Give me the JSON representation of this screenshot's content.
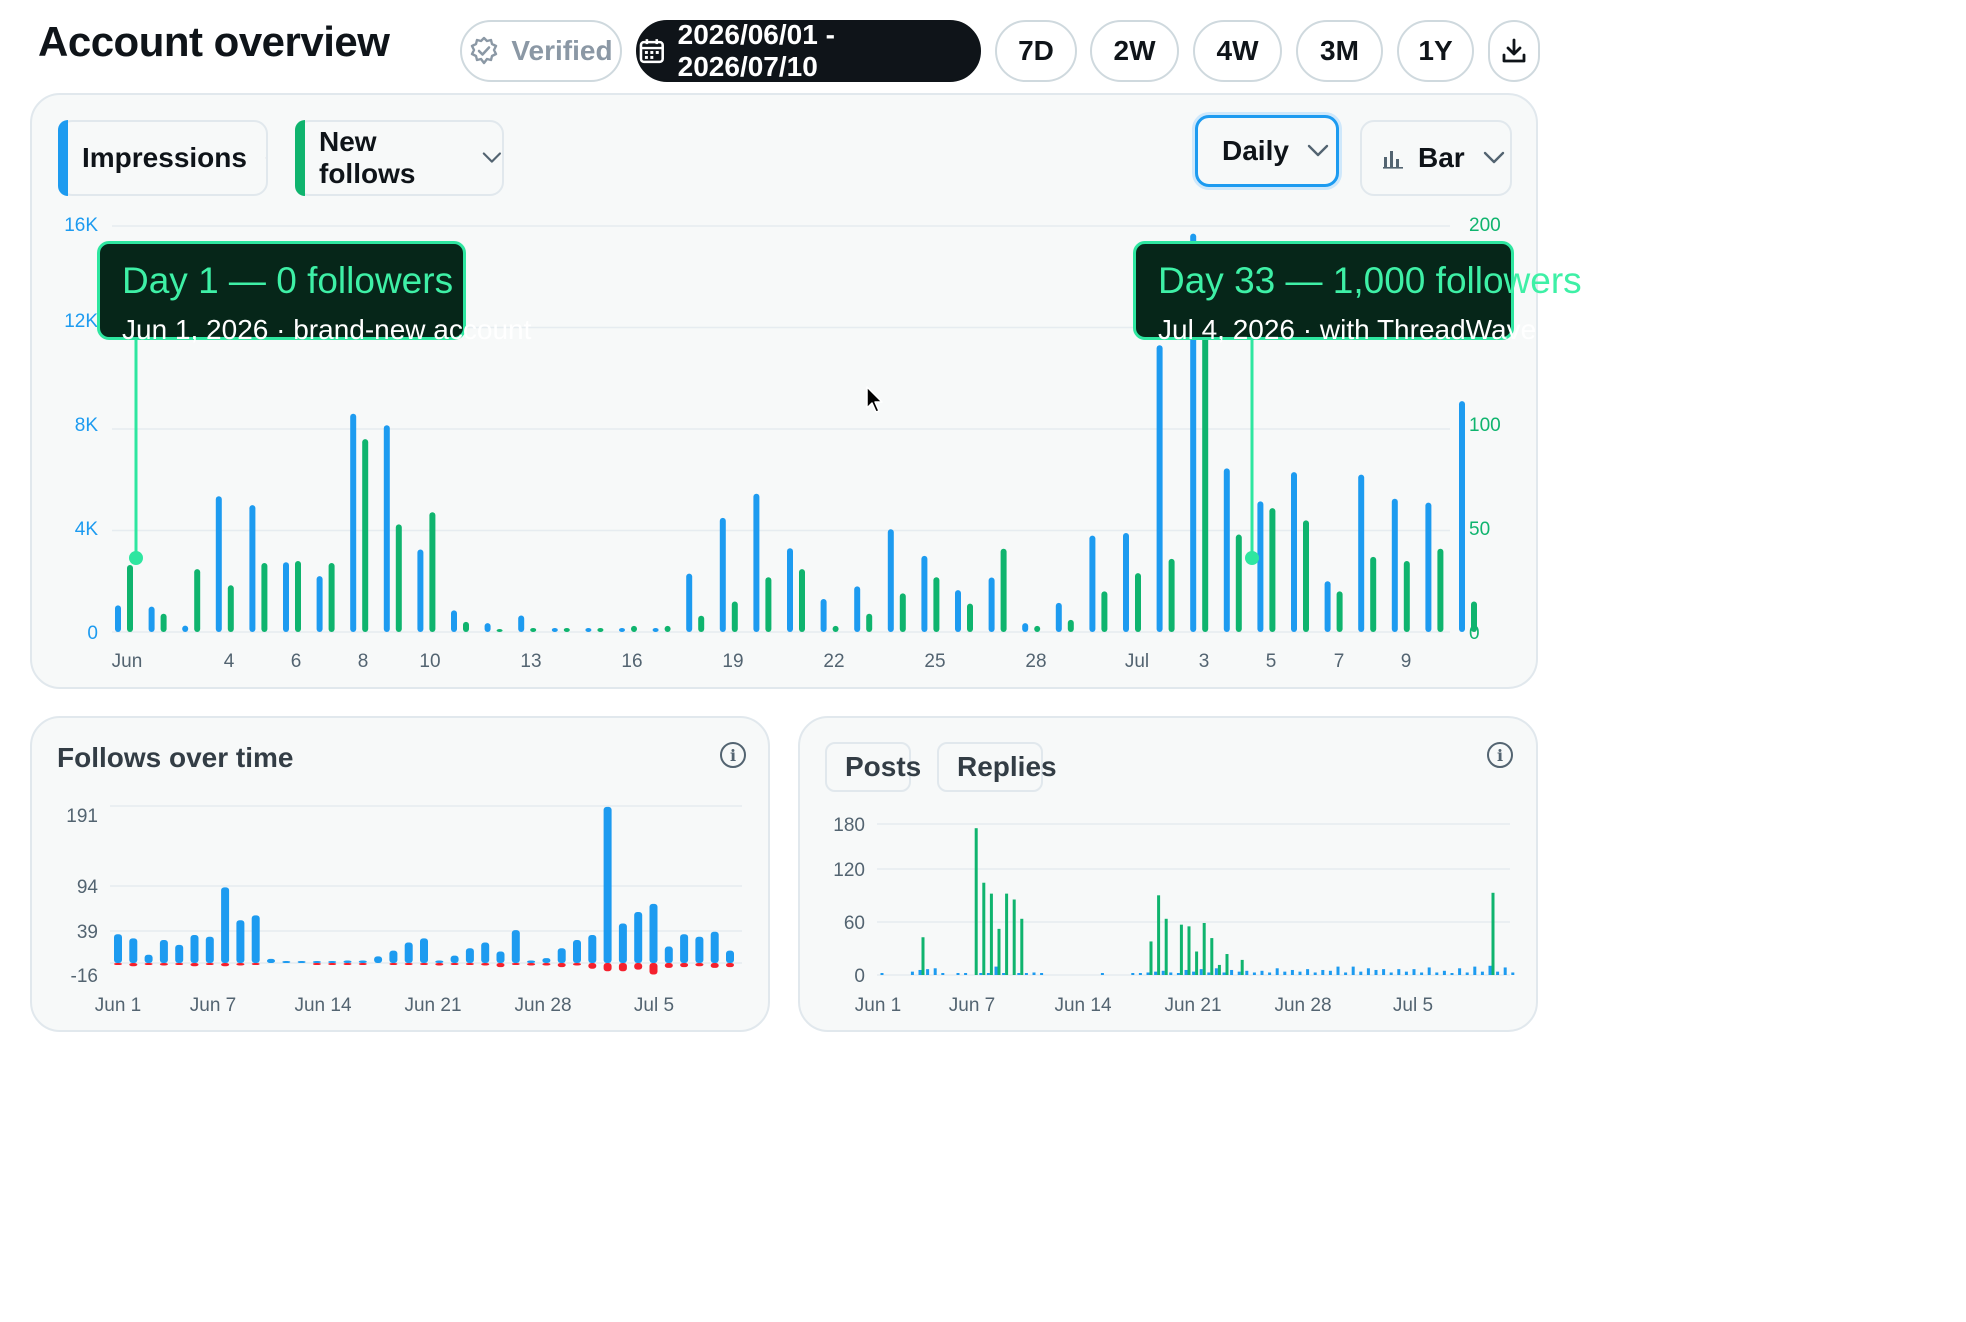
{
  "header": {
    "title": "Account overview",
    "verified_label": "Verified",
    "date_range": "2026/06/01 - 2026/07/10",
    "ranges": [
      "7D",
      "2W",
      "4W",
      "3M",
      "1Y"
    ],
    "download_icon": "download-icon"
  },
  "main_chart": {
    "metric1": "Impressions",
    "metric2": "New follows",
    "granularity": "Daily",
    "chart_type": "Bar",
    "colors": {
      "blue": "#1d9bf0",
      "green": "#0fb46e"
    },
    "tooltip1": {
      "title": "Day 1 — 0 followers",
      "sub": "Jun 1, 2026 · brand-new account"
    },
    "tooltip2": {
      "title": "Day 33 — 1,000 followers",
      "sub": "Jul 4, 2026 · with ThreadWave"
    }
  },
  "follows_card": {
    "title": "Follows over time"
  },
  "posts_card": {
    "chip1": "Posts",
    "chip2": "Replies"
  },
  "chart_data": [
    {
      "type": "bar",
      "x_tick_labels": [
        "Jun",
        "4",
        "6",
        "8",
        "10",
        "13",
        "16",
        "19",
        "22",
        "25",
        "28",
        "Jul",
        "3",
        "5",
        "7",
        "9"
      ],
      "y_left_ticks": [
        "0",
        "4K",
        "8K",
        "12K",
        "16K"
      ],
      "y_right_ticks": [
        "0",
        "50",
        "100",
        "200"
      ],
      "ylim_left": [
        0,
        16000
      ],
      "ylim_right": [
        0,
        200
      ],
      "series": [
        {
          "name": "Impressions",
          "axis": "left",
          "values": [
            1050,
            1000,
            250,
            5350,
            5000,
            2750,
            2200,
            8600,
            8150,
            3250,
            850,
            350,
            650,
            100,
            100,
            150,
            150,
            2300,
            4500,
            5450,
            3300,
            1300,
            1800,
            4050,
            3000,
            1650,
            2150,
            350,
            1150,
            3800,
            3900,
            11300,
            15700,
            6450,
            5150,
            6300,
            2000,
            6200,
            5250,
            5100,
            9100
          ]
        },
        {
          "name": "New follows",
          "axis": "right",
          "values": [
            33,
            9,
            31,
            23,
            34,
            35,
            34,
            95,
            53,
            59,
            5,
            0,
            2,
            2,
            2,
            3,
            3,
            8,
            15,
            27,
            31,
            3,
            9,
            19,
            27,
            14,
            41,
            3,
            6,
            20,
            29,
            36,
            157,
            48,
            61,
            55,
            20,
            37,
            35,
            41,
            15
          ]
        }
      ]
    },
    {
      "type": "bar",
      "title": "Follows over time",
      "x_tick_labels": [
        "Jun 1",
        "Jun 7",
        "Jun 14",
        "Jun 21",
        "Jun 28",
        "Jul 5"
      ],
      "y_ticks": [
        "-16",
        "39",
        "94",
        "191"
      ],
      "series": [
        {
          "name": "gained",
          "values": [
            35,
            30,
            10,
            28,
            22,
            34,
            32,
            92,
            52,
            58,
            5,
            0,
            2,
            2,
            2,
            3,
            3,
            8,
            15,
            25,
            30,
            3,
            9,
            18,
            25,
            14,
            40,
            3,
            6,
            18,
            28,
            34,
            190,
            48,
            62,
            72,
            20,
            35,
            32,
            38,
            15
          ]
        },
        {
          "name": "lost",
          "values": [
            -2,
            -4,
            -2,
            -3,
            -2,
            -4,
            -2,
            -4,
            -3,
            -2,
            0,
            0,
            0,
            -1,
            -1,
            -1,
            -2,
            0,
            -1,
            -1,
            -2,
            -3,
            -1,
            -2,
            -3,
            -5,
            -2,
            -3,
            -3,
            -5,
            -3,
            -7,
            -10,
            -10,
            -8,
            -14,
            -6,
            -5,
            -4,
            -6,
            -5
          ]
        }
      ]
    },
    {
      "type": "bar",
      "x_tick_labels": [
        "Jun 1",
        "Jun 7",
        "Jun 14",
        "Jun 21",
        "Jun 28",
        "Jul 5"
      ],
      "y_ticks": [
        "0",
        "60",
        "120",
        "180"
      ],
      "series": [
        {
          "name": "Posts",
          "values": [
            1,
            0,
            0,
            0,
            4,
            6,
            7,
            8,
            1,
            0,
            1,
            2,
            0,
            1,
            1,
            10,
            2,
            0,
            2,
            2,
            3,
            2,
            0,
            0,
            0,
            0,
            0,
            0,
            0,
            1,
            0,
            0,
            0,
            1,
            2,
            3,
            4,
            5,
            3,
            2,
            6,
            4,
            7,
            3,
            8,
            3,
            6,
            4,
            5,
            3,
            5,
            3,
            8,
            4,
            6,
            4,
            7,
            3,
            6,
            5,
            10,
            3,
            10,
            4,
            8,
            6,
            7,
            3,
            7,
            4,
            7,
            3,
            9,
            3,
            5,
            1,
            8,
            3,
            10,
            4,
            11,
            4,
            9,
            3
          ]
        },
        {
          "name": "Replies",
          "values": [
            0,
            0,
            0,
            0,
            0,
            45,
            0,
            0,
            0,
            0,
            0,
            0,
            175,
            110,
            97,
            55,
            97,
            90,
            67,
            0,
            0,
            0,
            0,
            0,
            0,
            0,
            0,
            0,
            0,
            0,
            0,
            0,
            0,
            0,
            0,
            40,
            95,
            67,
            0,
            60,
            58,
            28,
            62,
            44,
            12,
            25,
            0,
            18,
            0,
            0,
            0,
            0,
            0,
            0,
            0,
            0,
            0,
            0,
            0,
            0,
            0,
            0,
            0,
            0,
            0,
            0,
            0,
            0,
            0,
            0,
            0,
            0,
            0,
            0,
            0,
            0,
            0,
            0,
            0,
            0,
            98,
            0,
            0,
            0
          ]
        }
      ]
    }
  ]
}
